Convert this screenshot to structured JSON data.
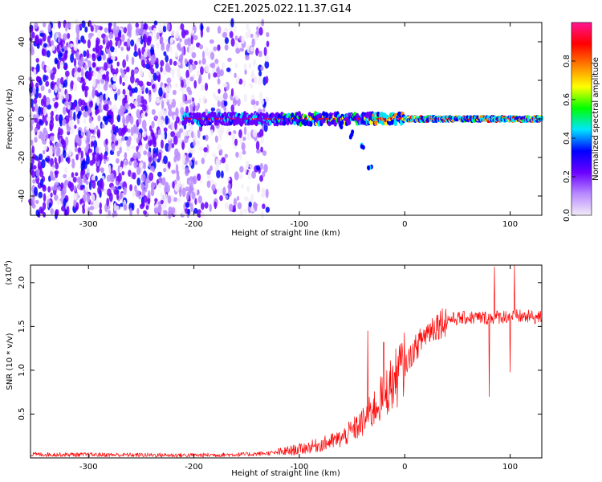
{
  "title": "C2E1.2025.022.11.37.G14",
  "chart_data": [
    {
      "type": "heatmap",
      "title": "C2E1.2025.022.11.37.G14",
      "xlabel": "Height of straight line (km)",
      "ylabel": "Frequency (Hz)",
      "xlim": [
        -355,
        130
      ],
      "ylim": [
        -50,
        50
      ],
      "xticks": [
        -300,
        -200,
        -100,
        0,
        100
      ],
      "yticks": [
        -40,
        -20,
        0,
        20,
        40
      ],
      "colorbar": {
        "label": "Normalized spectral amplitude",
        "range": [
          0.0,
          1.0
        ],
        "ticks": [
          0.0,
          0.2,
          0.4,
          0.6,
          0.8
        ],
        "colors": [
          "#f2ecf8",
          "#b88aff",
          "#6a00ff",
          "#0000ff",
          "#00e5ff",
          "#00ff00",
          "#ffff00",
          "#ff7f00",
          "#ff0000",
          "#ff1493"
        ]
      },
      "features": {
        "noise_region_x": [
          -355,
          -130
        ],
        "signal_band": {
          "x_start": -210,
          "x_end": 130,
          "freq_hz": 0
        },
        "branch": [
          [
            -60,
            -3
          ],
          [
            -50,
            -8
          ],
          [
            -40,
            -15
          ],
          [
            -33,
            -25
          ]
        ]
      }
    },
    {
      "type": "line",
      "xlabel": "Height of straight line (km)",
      "ylabel": "SNR (10 * v/v)",
      "multiplier": "(x10",
      "multiplier_exp": "4",
      "xlim": [
        -355,
        130
      ],
      "ylim": [
        0,
        2.2
      ],
      "xticks": [
        -300,
        -200,
        -100,
        0,
        100
      ],
      "yticks": [
        0.5,
        1.0,
        1.5,
        2.0
      ],
      "series": [
        {
          "color": "#ff0000",
          "envelope": [
            [
              -355,
              0.04
            ],
            [
              -200,
              0.03
            ],
            [
              -150,
              0.04
            ],
            [
              -120,
              0.06
            ],
            [
              -100,
              0.1
            ],
            [
              -80,
              0.15
            ],
            [
              -60,
              0.22
            ],
            [
              -40,
              0.4
            ],
            [
              -30,
              0.55
            ],
            [
              -20,
              0.72
            ],
            [
              -10,
              0.88
            ],
            [
              0,
              1.05
            ],
            [
              10,
              1.25
            ],
            [
              20,
              1.42
            ],
            [
              30,
              1.52
            ],
            [
              40,
              1.58
            ],
            [
              60,
              1.6
            ],
            [
              80,
              1.6
            ],
            [
              100,
              1.62
            ],
            [
              130,
              1.6
            ]
          ],
          "spikes": [
            [
              -35,
              1.45
            ],
            [
              -20,
              1.32
            ],
            [
              -5,
              1.28
            ],
            [
              80,
              0.7
            ],
            [
              85,
              2.18
            ],
            [
              100,
              0.98
            ],
            [
              104,
              2.2
            ]
          ]
        }
      ]
    }
  ]
}
